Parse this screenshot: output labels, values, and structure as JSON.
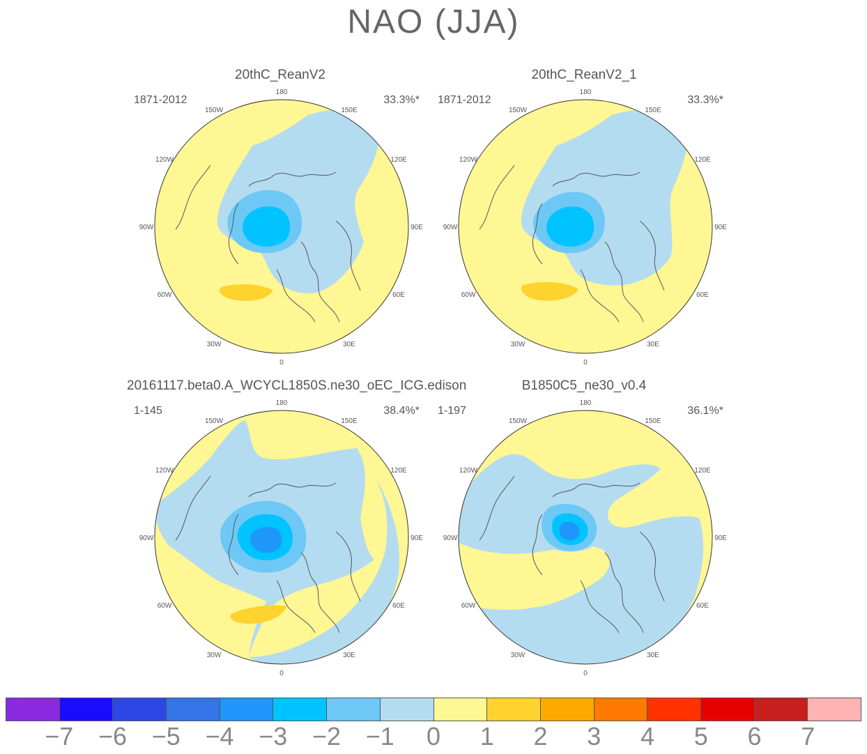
{
  "title": "NAO (JJA)",
  "panels": [
    {
      "title": "20thC_ReanV2",
      "period": "1871-2012",
      "pct": "33.3%*",
      "variant": 0
    },
    {
      "title": "20thC_ReanV2_1",
      "period": "1871-2012",
      "pct": "33.3%*",
      "variant": 1
    },
    {
      "title": "20161117.beta0.A_WCYCL1850S.ne30_oEC_ICG.edison",
      "period": "1-145",
      "pct": "38.4%*",
      "variant": 2
    },
    {
      "title": "B1850C5_ne30_v0.4",
      "period": "1-197",
      "pct": "36.1%*",
      "variant": 3
    }
  ],
  "lon_labels": [
    "180",
    "150E",
    "120E",
    "90E",
    "60E",
    "30E",
    "0",
    "30W",
    "60W",
    "90W",
    "120W",
    "150W"
  ],
  "colorbar": {
    "labels": [
      "-7",
      "-6",
      "-5",
      "-4",
      "-3",
      "-2",
      "-1",
      "0",
      "1",
      "2",
      "3",
      "4",
      "5",
      "6",
      "7"
    ],
    "colors": [
      "#8a2be2",
      "#1a0dff",
      "#2d47e6",
      "#3474e8",
      "#1e96fa",
      "#00c3ff",
      "#6ec8f5",
      "#b4dcf0",
      "#fff794",
      "#ffd32d",
      "#ffaa00",
      "#ff7a00",
      "#ff3200",
      "#e60000",
      "#c81e1e",
      "#ffb4b4"
    ]
  }
}
